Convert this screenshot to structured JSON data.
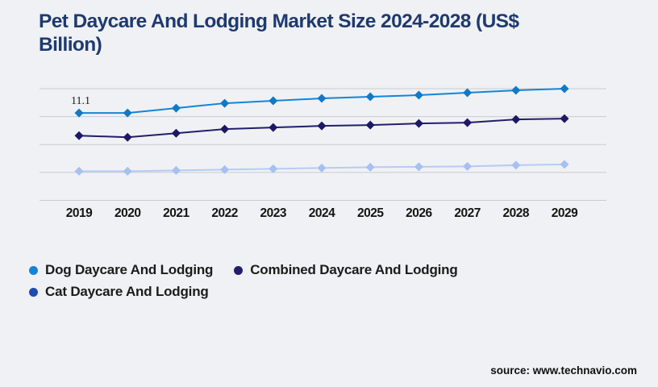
{
  "page": {
    "background": "#f0f1f4"
  },
  "title": {
    "text": "Pet Daycare And Lodging Market Size 2024-2028 (US$ Billion)",
    "lines": [
      "Pet Daycare And Lodging Market Size 2024-2028 (US$",
      "Billion)"
    ],
    "color": "#1e3a6e"
  },
  "legend": {
    "items": [
      {
        "label": "Dog Daycare And Lodging",
        "color": "#1584d6"
      },
      {
        "label": "Combined Daycare And Lodging",
        "color": "#221e6b"
      },
      {
        "label": "Cat Daycare And Lodging",
        "color": "#1d4cb0"
      }
    ]
  },
  "source": {
    "text": "source: www.technavio.com"
  },
  "chart_data": {
    "type": "line",
    "title": "Pet Daycare And Lodging Market Size 2024-2028 (US$ Billion)",
    "x": [
      2019,
      2020,
      2021,
      2022,
      2023,
      2024,
      2025,
      2026,
      2027,
      2028,
      2029
    ],
    "series": [
      {
        "name": "Dog Daycare And Lodging",
        "line_color": "#1584d6",
        "marker_color": "#1079c8",
        "marker": "diamond",
        "values": [
          11.1,
          11.1,
          11.7,
          12.3,
          12.6,
          12.9,
          13.1,
          13.3,
          13.6,
          13.9,
          14.1
        ]
      },
      {
        "name": "Combined Daycare And Lodging",
        "line_color": "#221e6b",
        "marker_color": "#1c1866",
        "marker": "diamond",
        "values": [
          8.3,
          8.1,
          8.6,
          9.1,
          9.3,
          9.5,
          9.6,
          9.8,
          9.9,
          10.3,
          10.4
        ]
      },
      {
        "name": "Cat Daycare And Lodging",
        "line_color": "#b7cbf5",
        "marker_color": "#a5c0f2",
        "marker": "diamond",
        "values": [
          3.9,
          3.9,
          4.0,
          4.1,
          4.2,
          4.3,
          4.4,
          4.45,
          4.5,
          4.65,
          4.75
        ]
      }
    ],
    "annotations": [
      {
        "text": "11.1",
        "series": 0,
        "index": 0
      }
    ],
    "xlabel": "",
    "ylabel": "",
    "ylim": [
      0.3,
      14.1
    ],
    "grid": true,
    "gridline_count": 5,
    "gridline_color": "#c9cbd0",
    "axis_label_color": "#141414",
    "legend_position": "bottom"
  }
}
